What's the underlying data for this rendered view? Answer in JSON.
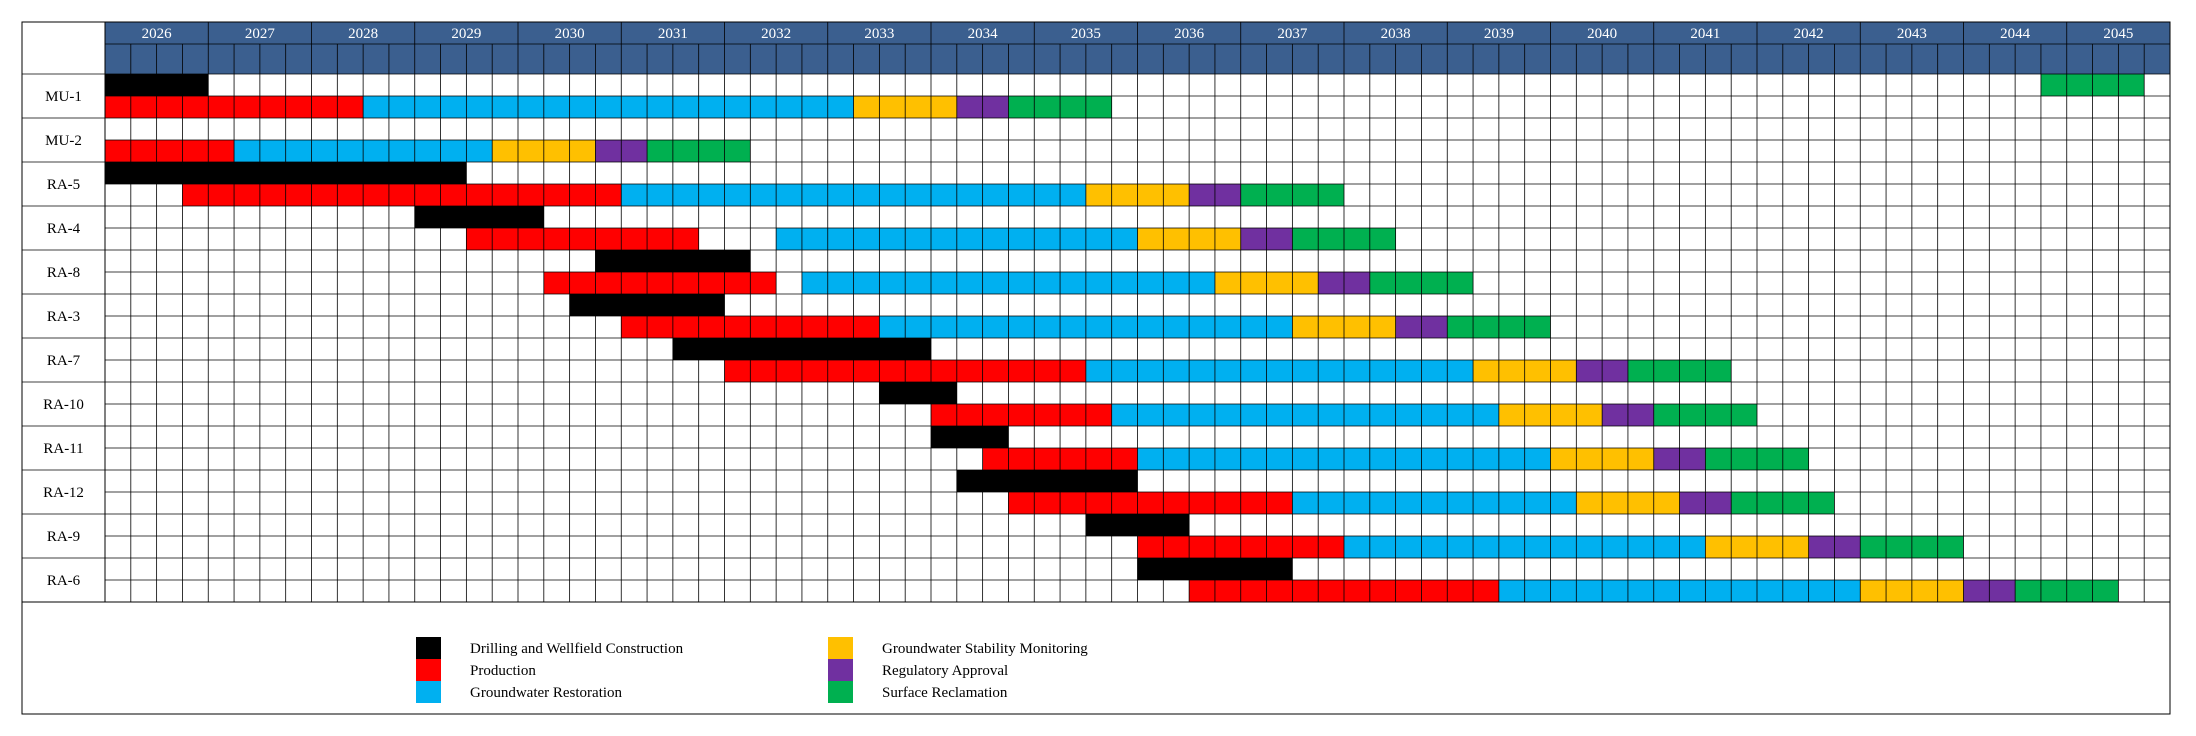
{
  "colors": {
    "header_bg": "#3B5F8F",
    "header_text": "#FFFFFF",
    "grid": "#000000",
    "drilling": "#000000",
    "production": "#FF0000",
    "restoration": "#00B0F0",
    "stability": "#FFC000",
    "regulatory": "#7030A0",
    "reclamation": "#00B050"
  },
  "chart_data": {
    "type": "gantt",
    "years": [
      "2026",
      "2027",
      "2028",
      "2029",
      "2030",
      "2031",
      "2032",
      "2033",
      "2034",
      "2035",
      "2036",
      "2037",
      "2038",
      "2039",
      "2040",
      "2041",
      "2042",
      "2043",
      "2044",
      "2045"
    ],
    "periods_per_year": 4,
    "legend": [
      {
        "key": "drilling",
        "label": "Drilling and Wellfield Construction"
      },
      {
        "key": "production",
        "label": "Production"
      },
      {
        "key": "restoration",
        "label": "Groundwater Restoration"
      },
      {
        "key": "stability",
        "label": "Groundwater Stability Monitoring"
      },
      {
        "key": "regulatory",
        "label": "Regulatory Approval"
      },
      {
        "key": "reclamation",
        "label": "Surface Reclamation"
      }
    ],
    "units": [
      {
        "name": "MU-1",
        "rows": [
          [
            {
              "phase": "drilling",
              "start": 0,
              "end": 4
            },
            {
              "phase": "reclamation",
              "start": 75,
              "end": 79
            }
          ],
          [
            {
              "phase": "production",
              "start": 0,
              "end": 10
            },
            {
              "phase": "restoration",
              "start": 10,
              "end": 29
            },
            {
              "phase": "stability",
              "start": 29,
              "end": 33
            },
            {
              "phase": "regulatory",
              "start": 33,
              "end": 35
            },
            {
              "phase": "reclamation",
              "start": 35,
              "end": 39
            }
          ]
        ]
      },
      {
        "name": "MU-2",
        "rows": [
          [],
          [
            {
              "phase": "production",
              "start": 0,
              "end": 5
            },
            {
              "phase": "restoration",
              "start": 5,
              "end": 15
            },
            {
              "phase": "stability",
              "start": 15,
              "end": 19
            },
            {
              "phase": "regulatory",
              "start": 19,
              "end": 21
            },
            {
              "phase": "reclamation",
              "start": 21,
              "end": 25
            }
          ]
        ]
      },
      {
        "name": "RA-5",
        "rows": [
          [
            {
              "phase": "drilling",
              "start": 0,
              "end": 14
            }
          ],
          [
            {
              "phase": "production",
              "start": 3,
              "end": 20
            },
            {
              "phase": "restoration",
              "start": 20,
              "end": 38
            },
            {
              "phase": "stability",
              "start": 38,
              "end": 42
            },
            {
              "phase": "regulatory",
              "start": 42,
              "end": 44
            },
            {
              "phase": "reclamation",
              "start": 44,
              "end": 48
            }
          ]
        ]
      },
      {
        "name": "RA-4",
        "rows": [
          [
            {
              "phase": "drilling",
              "start": 12,
              "end": 17
            }
          ],
          [
            {
              "phase": "production",
              "start": 14,
              "end": 23
            },
            {
              "phase": "restoration",
              "start": 26,
              "end": 40
            },
            {
              "phase": "stability",
              "start": 40,
              "end": 44
            },
            {
              "phase": "regulatory",
              "start": 44,
              "end": 46
            },
            {
              "phase": "reclamation",
              "start": 46,
              "end": 50
            }
          ]
        ]
      },
      {
        "name": "RA-8",
        "rows": [
          [
            {
              "phase": "drilling",
              "start": 19,
              "end": 25
            }
          ],
          [
            {
              "phase": "production",
              "start": 17,
              "end": 26
            },
            {
              "phase": "restoration",
              "start": 27,
              "end": 43
            },
            {
              "phase": "stability",
              "start": 43,
              "end": 47
            },
            {
              "phase": "regulatory",
              "start": 47,
              "end": 49
            },
            {
              "phase": "reclamation",
              "start": 49,
              "end": 53
            }
          ]
        ]
      },
      {
        "name": "RA-3",
        "rows": [
          [
            {
              "phase": "drilling",
              "start": 18,
              "end": 24
            }
          ],
          [
            {
              "phase": "production",
              "start": 20,
              "end": 30
            },
            {
              "phase": "restoration",
              "start": 30,
              "end": 46
            },
            {
              "phase": "stability",
              "start": 46,
              "end": 50
            },
            {
              "phase": "regulatory",
              "start": 50,
              "end": 52
            },
            {
              "phase": "reclamation",
              "start": 52,
              "end": 56
            }
          ]
        ]
      },
      {
        "name": "RA-7",
        "rows": [
          [
            {
              "phase": "drilling",
              "start": 22,
              "end": 32
            }
          ],
          [
            {
              "phase": "production",
              "start": 24,
              "end": 38
            },
            {
              "phase": "restoration",
              "start": 38,
              "end": 53
            },
            {
              "phase": "stability",
              "start": 53,
              "end": 57
            },
            {
              "phase": "regulatory",
              "start": 57,
              "end": 59
            },
            {
              "phase": "reclamation",
              "start": 59,
              "end": 63
            }
          ]
        ]
      },
      {
        "name": "RA-10",
        "rows": [
          [
            {
              "phase": "drilling",
              "start": 30,
              "end": 33
            }
          ],
          [
            {
              "phase": "production",
              "start": 32,
              "end": 39
            },
            {
              "phase": "restoration",
              "start": 39,
              "end": 54
            },
            {
              "phase": "stability",
              "start": 54,
              "end": 58
            },
            {
              "phase": "regulatory",
              "start": 58,
              "end": 60
            },
            {
              "phase": "reclamation",
              "start": 60,
              "end": 64
            }
          ]
        ]
      },
      {
        "name": "RA-11",
        "rows": [
          [
            {
              "phase": "drilling",
              "start": 32,
              "end": 35
            }
          ],
          [
            {
              "phase": "production",
              "start": 34,
              "end": 40
            },
            {
              "phase": "restoration",
              "start": 40,
              "end": 56
            },
            {
              "phase": "stability",
              "start": 56,
              "end": 60
            },
            {
              "phase": "regulatory",
              "start": 60,
              "end": 62
            },
            {
              "phase": "reclamation",
              "start": 62,
              "end": 66
            }
          ]
        ]
      },
      {
        "name": "RA-12",
        "rows": [
          [
            {
              "phase": "drilling",
              "start": 33,
              "end": 40
            }
          ],
          [
            {
              "phase": "production",
              "start": 35,
              "end": 46
            },
            {
              "phase": "restoration",
              "start": 46,
              "end": 57
            },
            {
              "phase": "stability",
              "start": 57,
              "end": 61
            },
            {
              "phase": "regulatory",
              "start": 61,
              "end": 63
            },
            {
              "phase": "reclamation",
              "start": 63,
              "end": 67
            }
          ]
        ]
      },
      {
        "name": "RA-9",
        "rows": [
          [
            {
              "phase": "drilling",
              "start": 38,
              "end": 42
            }
          ],
          [
            {
              "phase": "production",
              "start": 40,
              "end": 48
            },
            {
              "phase": "restoration",
              "start": 48,
              "end": 62
            },
            {
              "phase": "stability",
              "start": 62,
              "end": 66
            },
            {
              "phase": "regulatory",
              "start": 66,
              "end": 68
            },
            {
              "phase": "reclamation",
              "start": 68,
              "end": 72
            }
          ]
        ]
      },
      {
        "name": "RA-6",
        "rows": [
          [
            {
              "phase": "drilling",
              "start": 40,
              "end": 46
            }
          ],
          [
            {
              "phase": "production",
              "start": 42,
              "end": 54
            },
            {
              "phase": "restoration",
              "start": 54,
              "end": 68
            },
            {
              "phase": "stability",
              "start": 68,
              "end": 72
            },
            {
              "phase": "regulatory",
              "start": 72,
              "end": 74
            },
            {
              "phase": "reclamation",
              "start": 74,
              "end": 78
            }
          ]
        ]
      }
    ]
  }
}
